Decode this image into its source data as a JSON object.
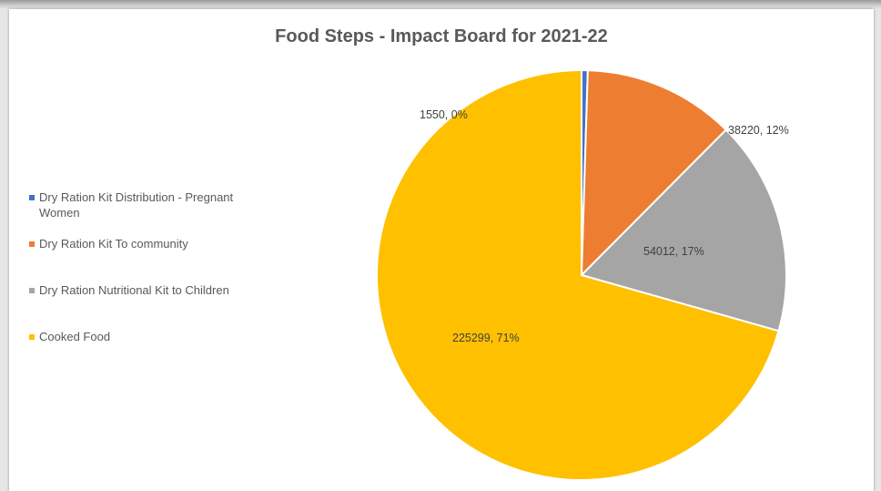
{
  "chart_data": {
    "type": "pie",
    "title": "Food Steps - Impact Board for 2021-22",
    "legend_position": "left",
    "categories": [
      "Dry Ration Kit Distribution - Pregnant Women",
      "Dry Ration Kit To community",
      "Dry Ration Nutritional Kit to Children",
      "Cooked Food"
    ],
    "values": [
      1550,
      38220,
      54012,
      225299
    ],
    "data_labels": [
      "1550, 0%",
      "38220, 12%",
      "54012, 17%",
      "225299, 71%"
    ],
    "colors": [
      "#4472C4",
      "#ED7D31",
      "#A5A5A5",
      "#FFC000"
    ]
  },
  "legend": {
    "items": [
      {
        "line1": "Dry Ration Kit Distribution - Pregnant",
        "line2": "Women"
      },
      {
        "line1": "Dry Ration Kit To community",
        "line2": ""
      },
      {
        "line1": "Dry Ration Nutritional Kit to Children",
        "line2": ""
      },
      {
        "line1": "Cooked Food",
        "line2": ""
      }
    ]
  }
}
